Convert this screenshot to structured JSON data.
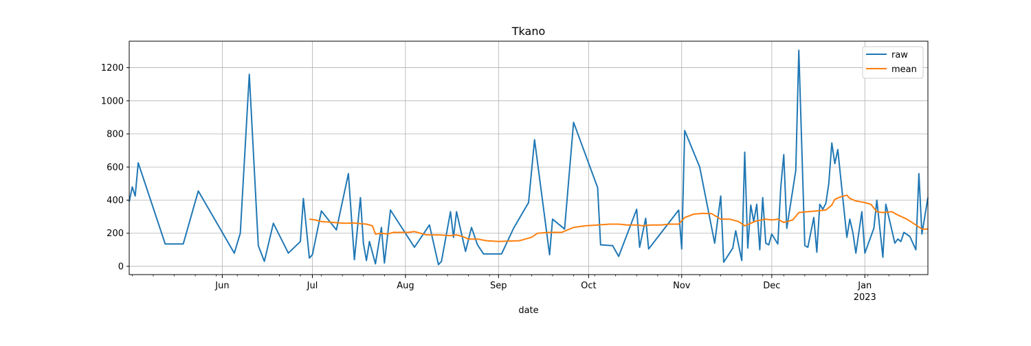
{
  "chart_data": {
    "type": "line",
    "title": "Tkano",
    "xlabel": "date",
    "ylabel": "",
    "xlim": [
      "2022-05-01",
      "2023-01-22"
    ],
    "ylim": [
      -50,
      1360
    ],
    "x_ticks": [
      {
        "date": "2022-06-01",
        "label": "Jun",
        "sublabel": ""
      },
      {
        "date": "2022-07-01",
        "label": "Jul",
        "sublabel": ""
      },
      {
        "date": "2022-08-01",
        "label": "Aug",
        "sublabel": ""
      },
      {
        "date": "2022-09-01",
        "label": "Sep",
        "sublabel": ""
      },
      {
        "date": "2022-10-01",
        "label": "Oct",
        "sublabel": ""
      },
      {
        "date": "2022-11-01",
        "label": "Nov",
        "sublabel": ""
      },
      {
        "date": "2022-12-01",
        "label": "Dec",
        "sublabel": ""
      },
      {
        "date": "2023-01-01",
        "label": "Jan",
        "sublabel": "2023"
      }
    ],
    "y_ticks": [
      0,
      200,
      400,
      600,
      800,
      1000,
      1200
    ],
    "grid": true,
    "legend_position": "top-right",
    "series": [
      {
        "name": "raw",
        "color": "#1f77b4",
        "points": [
          [
            "2022-05-01",
            390
          ],
          [
            "2022-05-02",
            480
          ],
          [
            "2022-05-03",
            425
          ],
          [
            "2022-05-04",
            625
          ],
          [
            "2022-05-13",
            135
          ],
          [
            "2022-05-19",
            135
          ],
          [
            "2022-05-24",
            455
          ],
          [
            "2022-06-05",
            80
          ],
          [
            "2022-06-07",
            200
          ],
          [
            "2022-06-10",
            1160
          ],
          [
            "2022-06-13",
            125
          ],
          [
            "2022-06-15",
            30
          ],
          [
            "2022-06-18",
            260
          ],
          [
            "2022-06-23",
            80
          ],
          [
            "2022-06-27",
            150
          ],
          [
            "2022-06-28",
            410
          ],
          [
            "2022-06-30",
            50
          ],
          [
            "2022-07-01",
            70
          ],
          [
            "2022-07-04",
            335
          ],
          [
            "2022-07-09",
            220
          ],
          [
            "2022-07-13",
            560
          ],
          [
            "2022-07-15",
            40
          ],
          [
            "2022-07-17",
            415
          ],
          [
            "2022-07-18",
            140
          ],
          [
            "2022-07-19",
            35
          ],
          [
            "2022-07-20",
            150
          ],
          [
            "2022-07-22",
            15
          ],
          [
            "2022-07-24",
            235
          ],
          [
            "2022-07-25",
            20
          ],
          [
            "2022-07-27",
            340
          ],
          [
            "2022-08-04",
            115
          ],
          [
            "2022-08-09",
            250
          ],
          [
            "2022-08-12",
            10
          ],
          [
            "2022-08-13",
            30
          ],
          [
            "2022-08-16",
            330
          ],
          [
            "2022-08-17",
            175
          ],
          [
            "2022-08-18",
            330
          ],
          [
            "2022-08-21",
            90
          ],
          [
            "2022-08-23",
            235
          ],
          [
            "2022-08-25",
            130
          ],
          [
            "2022-08-27",
            75
          ],
          [
            "2022-09-02",
            75
          ],
          [
            "2022-09-06",
            230
          ],
          [
            "2022-09-11",
            385
          ],
          [
            "2022-09-13",
            765
          ],
          [
            "2022-09-18",
            70
          ],
          [
            "2022-09-19",
            285
          ],
          [
            "2022-09-23",
            225
          ],
          [
            "2022-09-26",
            870
          ],
          [
            "2022-10-04",
            475
          ],
          [
            "2022-10-05",
            130
          ],
          [
            "2022-10-09",
            125
          ],
          [
            "2022-10-11",
            60
          ],
          [
            "2022-10-17",
            345
          ],
          [
            "2022-10-18",
            115
          ],
          [
            "2022-10-20",
            290
          ],
          [
            "2022-10-21",
            105
          ],
          [
            "2022-10-31",
            340
          ],
          [
            "2022-11-01",
            105
          ],
          [
            "2022-11-02",
            820
          ],
          [
            "2022-11-07",
            600
          ],
          [
            "2022-11-12",
            140
          ],
          [
            "2022-11-14",
            425
          ],
          [
            "2022-11-15",
            25
          ],
          [
            "2022-11-18",
            110
          ],
          [
            "2022-11-19",
            215
          ],
          [
            "2022-11-21",
            35
          ],
          [
            "2022-11-22",
            690
          ],
          [
            "2022-11-23",
            110
          ],
          [
            "2022-11-24",
            370
          ],
          [
            "2022-11-25",
            270
          ],
          [
            "2022-11-26",
            375
          ],
          [
            "2022-11-27",
            100
          ],
          [
            "2022-11-28",
            415
          ],
          [
            "2022-11-29",
            140
          ],
          [
            "2022-11-30",
            130
          ],
          [
            "2022-12-01",
            195
          ],
          [
            "2022-12-03",
            135
          ],
          [
            "2022-12-04",
            475
          ],
          [
            "2022-12-05",
            675
          ],
          [
            "2022-12-06",
            230
          ],
          [
            "2022-12-09",
            580
          ],
          [
            "2022-12-10",
            1305
          ],
          [
            "2022-12-12",
            125
          ],
          [
            "2022-12-13",
            115
          ],
          [
            "2022-12-15",
            295
          ],
          [
            "2022-12-16",
            85
          ],
          [
            "2022-12-17",
            375
          ],
          [
            "2022-12-18",
            345
          ],
          [
            "2022-12-19",
            380
          ],
          [
            "2022-12-20",
            500
          ],
          [
            "2022-12-21",
            745
          ],
          [
            "2022-12-22",
            620
          ],
          [
            "2022-12-23",
            705
          ],
          [
            "2022-12-26",
            175
          ],
          [
            "2022-12-27",
            285
          ],
          [
            "2022-12-28",
            205
          ],
          [
            "2022-12-29",
            80
          ],
          [
            "2022-12-31",
            330
          ],
          [
            "2023-01-01",
            80
          ],
          [
            "2023-01-04",
            230
          ],
          [
            "2023-01-05",
            400
          ],
          [
            "2023-01-07",
            55
          ],
          [
            "2023-01-08",
            375
          ],
          [
            "2023-01-11",
            140
          ],
          [
            "2023-01-12",
            165
          ],
          [
            "2023-01-13",
            150
          ],
          [
            "2023-01-14",
            205
          ],
          [
            "2023-01-16",
            180
          ],
          [
            "2023-01-18",
            100
          ],
          [
            "2023-01-19",
            560
          ],
          [
            "2023-01-20",
            195
          ],
          [
            "2023-01-22",
            415
          ]
        ]
      },
      {
        "name": "mean",
        "color": "#ff7f0e",
        "points": [
          [
            "2022-06-30",
            285
          ],
          [
            "2022-07-02",
            280
          ],
          [
            "2022-07-04",
            270
          ],
          [
            "2022-07-08",
            265
          ],
          [
            "2022-07-10",
            262
          ],
          [
            "2022-07-12",
            260
          ],
          [
            "2022-07-15",
            262
          ],
          [
            "2022-07-17",
            258
          ],
          [
            "2022-07-19",
            255
          ],
          [
            "2022-07-21",
            245
          ],
          [
            "2022-07-22",
            195
          ],
          [
            "2022-07-24",
            200
          ],
          [
            "2022-07-26",
            195
          ],
          [
            "2022-07-28",
            205
          ],
          [
            "2022-07-31",
            205
          ],
          [
            "2022-08-02",
            205
          ],
          [
            "2022-08-04",
            210
          ],
          [
            "2022-08-08",
            190
          ],
          [
            "2022-08-12",
            190
          ],
          [
            "2022-08-16",
            185
          ],
          [
            "2022-08-18",
            190
          ],
          [
            "2022-08-20",
            180
          ],
          [
            "2022-08-22",
            165
          ],
          [
            "2022-08-25",
            165
          ],
          [
            "2022-08-28",
            155
          ],
          [
            "2022-09-01",
            150
          ],
          [
            "2022-09-04",
            152
          ],
          [
            "2022-09-08",
            155
          ],
          [
            "2022-09-12",
            175
          ],
          [
            "2022-09-14",
            200
          ],
          [
            "2022-09-18",
            205
          ],
          [
            "2022-09-22",
            205
          ],
          [
            "2022-09-26",
            235
          ],
          [
            "2022-09-30",
            245
          ],
          [
            "2022-10-04",
            250
          ],
          [
            "2022-10-08",
            255
          ],
          [
            "2022-10-11",
            255
          ],
          [
            "2022-10-14",
            250
          ],
          [
            "2022-10-17",
            250
          ],
          [
            "2022-10-19",
            245
          ],
          [
            "2022-10-22",
            250
          ],
          [
            "2022-10-25",
            250
          ],
          [
            "2022-10-28",
            255
          ],
          [
            "2022-10-31",
            255
          ],
          [
            "2022-11-02",
            295
          ],
          [
            "2022-11-05",
            315
          ],
          [
            "2022-11-08",
            320
          ],
          [
            "2022-11-11",
            318
          ],
          [
            "2022-11-14",
            285
          ],
          [
            "2022-11-17",
            285
          ],
          [
            "2022-11-20",
            270
          ],
          [
            "2022-11-22",
            245
          ],
          [
            "2022-11-24",
            260
          ],
          [
            "2022-11-26",
            275
          ],
          [
            "2022-11-29",
            285
          ],
          [
            "2022-12-01",
            280
          ],
          [
            "2022-12-03",
            285
          ],
          [
            "2022-12-04",
            275
          ],
          [
            "2022-12-05",
            265
          ],
          [
            "2022-12-06",
            270
          ],
          [
            "2022-12-08",
            280
          ],
          [
            "2022-12-10",
            325
          ],
          [
            "2022-12-13",
            330
          ],
          [
            "2022-12-16",
            335
          ],
          [
            "2022-12-19",
            340
          ],
          [
            "2022-12-21",
            370
          ],
          [
            "2022-12-22",
            405
          ],
          [
            "2022-12-24",
            420
          ],
          [
            "2022-12-26",
            430
          ],
          [
            "2022-12-27",
            410
          ],
          [
            "2022-12-29",
            395
          ],
          [
            "2023-01-01",
            385
          ],
          [
            "2023-01-03",
            375
          ],
          [
            "2023-01-05",
            330
          ],
          [
            "2023-01-07",
            325
          ],
          [
            "2023-01-10",
            330
          ],
          [
            "2023-01-12",
            310
          ],
          [
            "2023-01-15",
            285
          ],
          [
            "2023-01-18",
            250
          ],
          [
            "2023-01-20",
            225
          ],
          [
            "2023-01-22",
            225
          ]
        ]
      }
    ]
  }
}
